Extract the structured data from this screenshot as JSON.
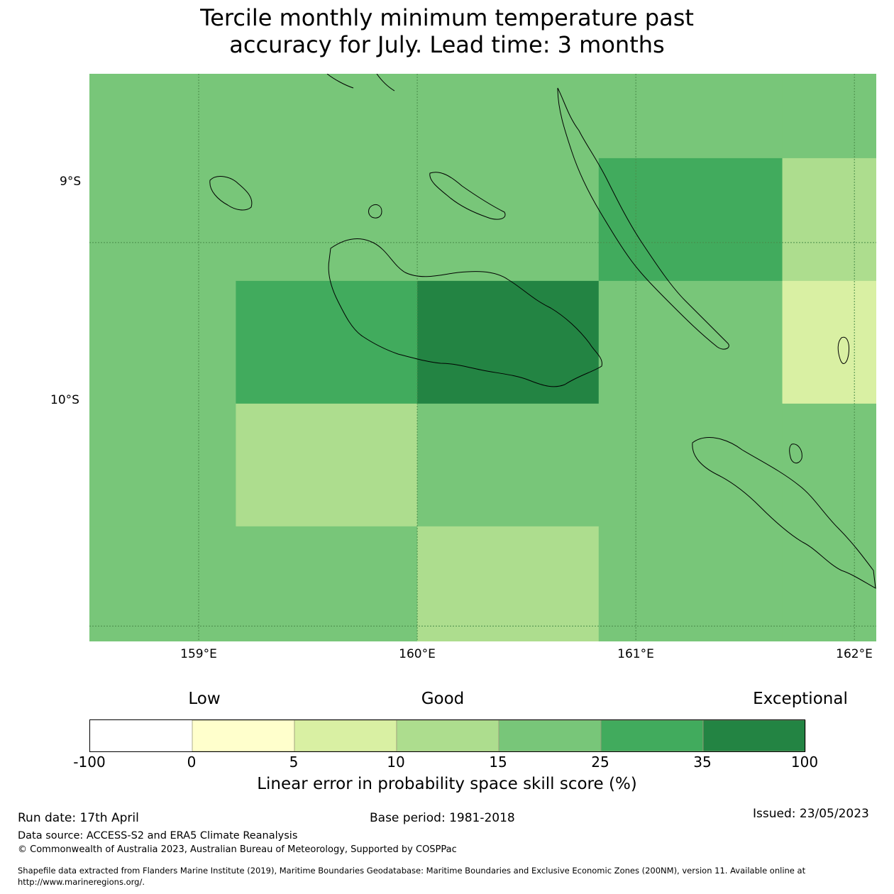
{
  "title": {
    "line1": "Tercile monthly minimum temperature past",
    "line2": "accuracy for July. Lead time: 3 months"
  },
  "map": {
    "lat_labels": [
      "9°S",
      "10°S"
    ],
    "lon_labels": [
      "159°E",
      "160°E",
      "161°E",
      "162°E"
    ],
    "lon_range": [
      158.5,
      162.1
    ],
    "lat_range": [
      -10.04,
      -8.56
    ],
    "grid_cells": {
      "lon_edges": [
        158.5,
        159.17,
        160.0,
        160.83,
        161.67,
        162.1
      ],
      "lat_edges": [
        -8.56,
        -8.78,
        -9.1,
        -9.42,
        -9.74,
        -10.04
      ],
      "rows": [
        [
          20,
          20,
          20,
          20,
          20
        ],
        [
          20,
          20,
          20,
          30,
          12
        ],
        [
          20,
          30,
          40,
          20,
          7
        ],
        [
          20,
          12,
          20,
          20,
          20
        ],
        [
          20,
          20,
          12,
          20,
          20
        ]
      ]
    }
  },
  "colorbar": {
    "categories": [
      "Low",
      "Good",
      "Exceptional"
    ],
    "ticks": [
      "-100",
      "0",
      "5",
      "10",
      "15",
      "25",
      "35",
      "100"
    ],
    "colors": [
      "#ffffff",
      "#ffffcc",
      "#d9f0a3",
      "#addd8e",
      "#78c679",
      "#41ab5d",
      "#238443"
    ],
    "label": "Linear error in probability space skill score (%)"
  },
  "footer": {
    "run_date": "Run date: 17th April",
    "base_period": "Base period: 1981-2018",
    "issued": "Issued: 23/05/2023",
    "data_source": "Data source: ACCESS-S2 and ERA5 Climate Reanalysis",
    "copyright": "© Commonwealth of Australia 2023, Australian Bureau of Meteorology, Supported by COSPPac",
    "shapefile_line1": "Shapefile data extracted from Flanders Marine Institute (2019), Maritime Boundaries Geodatabase: Maritime Boundaries and Exclusive Economic Zones (200NM), version 11. Available online at",
    "shapefile_line2": "http://www.marineregions.org/."
  }
}
